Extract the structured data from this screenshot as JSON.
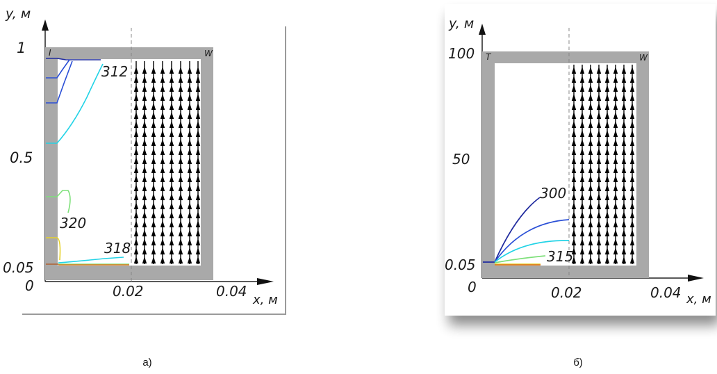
{
  "figure_a": {
    "caption": "а)",
    "axis_y_label": "y, м",
    "axis_x_label": "x, м",
    "y_ticks": [
      "1",
      "0.5",
      "0.05",
      "0"
    ],
    "x_ticks": [
      "0.02",
      "0.04"
    ],
    "corner_left": "I",
    "corner_right": "W",
    "contour_labels": [
      "312",
      "320",
      "318"
    ]
  },
  "figure_b": {
    "caption": "б)",
    "axis_y_label": "y, м",
    "axis_x_label": "x, м",
    "y_ticks": [
      "100",
      "50",
      "0.05",
      "0"
    ],
    "x_ticks": [
      "0.02",
      "0.04"
    ],
    "corner_left": "T",
    "corner_right": "W",
    "contour_labels": [
      "300",
      "315"
    ]
  },
  "colors": {
    "wall": "#a9a9a9",
    "arrows": "#000000",
    "dark_blue": "#1f2a9e",
    "blue": "#2a4fd6",
    "cyan": "#22d3e6",
    "green": "#7ee07a",
    "yellow": "#e6d12a",
    "orange": "#e07a1a"
  }
}
